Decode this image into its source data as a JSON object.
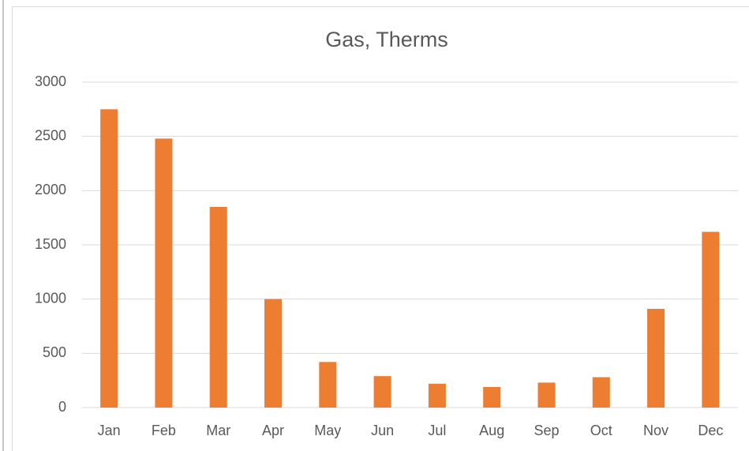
{
  "chart_data": {
    "type": "bar",
    "title": "Gas, Therms",
    "categories": [
      "Jan",
      "Feb",
      "Mar",
      "Apr",
      "May",
      "Jun",
      "Jul",
      "Aug",
      "Sep",
      "Oct",
      "Nov",
      "Dec"
    ],
    "values": [
      2750,
      2480,
      1850,
      1000,
      420,
      290,
      220,
      190,
      230,
      280,
      910,
      1620
    ],
    "color": "#ed7d31",
    "ylim": [
      0,
      3000
    ],
    "yticks": [
      0,
      500,
      1000,
      1500,
      2000,
      2500,
      3000
    ],
    "grid": true
  }
}
